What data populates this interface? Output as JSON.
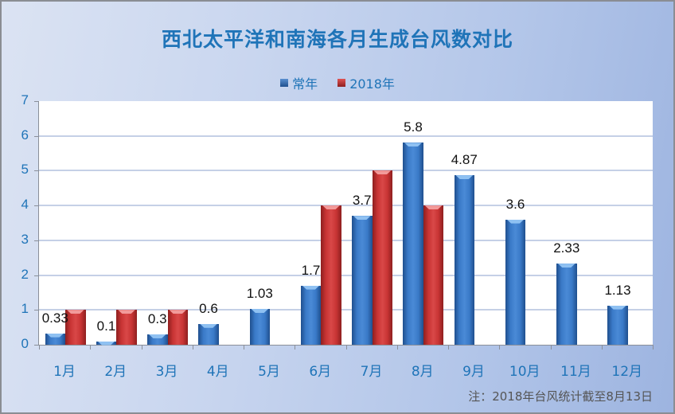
{
  "chart_data": {
    "type": "bar",
    "title": "西北太平洋和南海各月生成台风数对比",
    "categories": [
      "1月",
      "2月",
      "3月",
      "4月",
      "5月",
      "6月",
      "7月",
      "8月",
      "9月",
      "10月",
      "11月",
      "12月"
    ],
    "series": [
      {
        "name": "常年",
        "color": "#3a78c8",
        "values": [
          0.33,
          0.1,
          0.3,
          0.6,
          1.03,
          1.7,
          3.7,
          5.8,
          4.87,
          3.6,
          2.33,
          1.13
        ],
        "labels": [
          "0.33",
          "0.1",
          "0.3",
          "0.6",
          "1.03",
          "1.7",
          "3.7",
          "5.8",
          "4.87",
          "3.6",
          "2.33",
          "1.13"
        ]
      },
      {
        "name": "2018年",
        "color": "#d23a3a",
        "values": [
          1,
          1,
          1,
          null,
          null,
          4,
          5,
          4,
          null,
          null,
          null,
          null
        ]
      }
    ],
    "xlabel": "",
    "ylabel": "",
    "ylim": [
      0,
      7
    ],
    "yticks": [
      0,
      1,
      2,
      3,
      4,
      5,
      6,
      7
    ],
    "grid": true,
    "legend_position": "top",
    "annotation": "注：2018年台风统计截至8月13日"
  },
  "title": "西北太平洋和南海各月生成台风数对比",
  "legend": [
    {
      "label": "常年",
      "swatch": "blue"
    },
    {
      "label": "2018年",
      "swatch": "red"
    }
  ],
  "yticks": [
    "0",
    "1",
    "2",
    "3",
    "4",
    "5",
    "6",
    "7"
  ],
  "footnote": "注：2018年台风统计截至8月13日"
}
